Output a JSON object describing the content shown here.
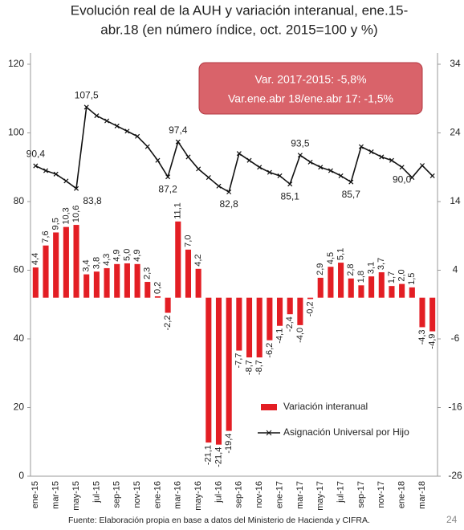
{
  "chart_data": {
    "type": "bar+line",
    "title": "Evolución real de la AUH y variación interanual, ene.15-abr.18 (en número índice, oct. 2015=100 y %)",
    "title_lines": [
      "Evolución real de la AUH y variación interanual, ene.15-",
      "abr.18 (en número índice, oct. 2015=100 y %)"
    ],
    "categories": [
      "ene-15",
      null,
      "mar-15",
      null,
      "may-15",
      null,
      "jul-15",
      null,
      "sep-15",
      null,
      "nov-15",
      null,
      "ene-16",
      null,
      "mar-16",
      null,
      "may-16",
      null,
      "jul-16",
      null,
      "sep-16",
      null,
      "nov-16",
      null,
      "ene-17",
      null,
      "mar-17",
      null,
      "may-17",
      null,
      "jul-17",
      null,
      "sep-17",
      null,
      "nov-17",
      null,
      "ene-18",
      null,
      "mar-18",
      null
    ],
    "series": [
      {
        "name": "Variación interanual",
        "type": "bar",
        "axis": "y2",
        "color": "#e31e24",
        "values": [
          4.4,
          7.6,
          9.5,
          10.3,
          10.6,
          3.4,
          3.8,
          4.3,
          4.9,
          5.0,
          4.9,
          2.3,
          0.2,
          -2.2,
          11.1,
          7.0,
          4.2,
          -21.1,
          -21.4,
          -19.4,
          -7.7,
          -8.7,
          -8.7,
          -6.2,
          -4.1,
          -2.4,
          -4.0,
          -0.2,
          2.9,
          4.5,
          5.1,
          2.8,
          1.8,
          3.1,
          3.7,
          1.7,
          2.0,
          1.5,
          -4.3,
          -4.9
        ],
        "value_labels": [
          "4,4",
          "7,6",
          "9,5",
          "10,3",
          "10,6",
          "3,4",
          "3,8",
          "4,3",
          "4,9",
          "5,0",
          "4,9",
          "2,3",
          "0,2",
          "-2,2",
          "11,1",
          "7,0",
          "4,2",
          "-21,1",
          "-21,4",
          "-19,4",
          "-7,7",
          "-8,7",
          "-8,7",
          "-6,2",
          "-4,1",
          "-2,4",
          "-4,0",
          "-0,2",
          "2,9",
          "4,5",
          "5,1",
          "2,8",
          "1,8",
          "3,1",
          "3,7",
          "1,7",
          "2,0",
          "1,5",
          "-4,3",
          "-4,9"
        ]
      },
      {
        "name": "Asignación Universal por Hijo",
        "type": "line",
        "axis": "y",
        "color": "#111111",
        "values": [
          90.4,
          89,
          88,
          86,
          83.8,
          107.5,
          105,
          103.5,
          102,
          100.5,
          99,
          96,
          92,
          87.2,
          97.4,
          93,
          89.5,
          87,
          84.5,
          82.8,
          94,
          92,
          90,
          88.5,
          87.5,
          85.1,
          93.5,
          91.5,
          90,
          89,
          87.5,
          85.7,
          96,
          94.5,
          93,
          92,
          90.0,
          87,
          90.5,
          87.5
        ],
        "value_labels": [
          "90,4",
          null,
          null,
          null,
          "83,8",
          "107,5",
          null,
          null,
          null,
          null,
          null,
          null,
          null,
          "87,2",
          "97,4",
          null,
          null,
          null,
          null,
          "82,8",
          null,
          null,
          null,
          null,
          null,
          "85,1",
          "93,5",
          null,
          null,
          null,
          null,
          "85,7",
          null,
          null,
          null,
          null,
          "90,0",
          null,
          null,
          null
        ]
      }
    ],
    "ylim": [
      0,
      120
    ],
    "yticks": [
      0,
      20,
      40,
      60,
      80,
      100,
      120
    ],
    "y2lim": [
      -26,
      34
    ],
    "y2ticks": [
      -26,
      -16,
      -6,
      4,
      14,
      24,
      34
    ],
    "annotations": [
      "Var. 2017-2015: -5,8%",
      "Var.ene.abr 18/ene.abr 17: -1,5%"
    ],
    "source": "Fuente: Elaboración propia en base a datos del Ministerio de Hacienda y CIFRA.",
    "page_number": "24",
    "legend": "lower right"
  }
}
